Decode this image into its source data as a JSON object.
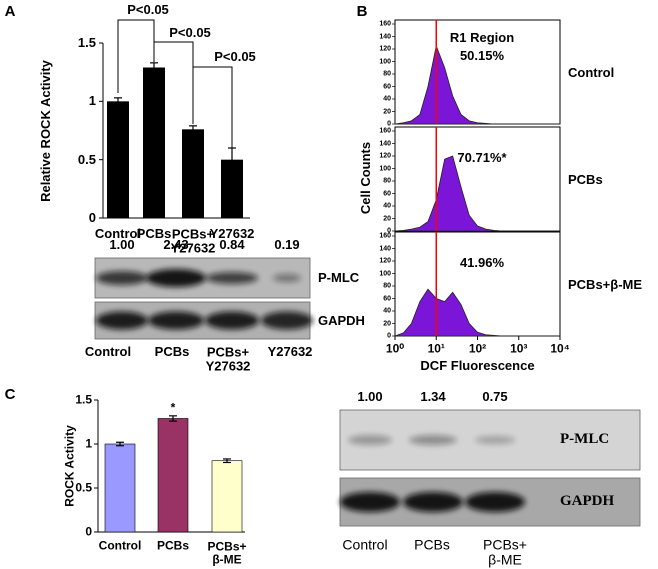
{
  "panel_labels": [
    "A",
    "B",
    "C"
  ],
  "chart_data": [
    {
      "type": "bar",
      "ylabel": "Relative ROCK Activity",
      "categories": [
        "Control",
        "PCBs",
        "PCBs+\nY27632",
        "Y27632"
      ],
      "values": [
        1.0,
        1.29,
        0.76,
        0.5
      ],
      "errors": [
        0.03,
        0.04,
        0.03,
        0.1
      ],
      "color": "#000000",
      "ylim": [
        0,
        1.5
      ],
      "yticks": [
        0,
        0.5,
        1,
        1.5
      ],
      "annotations": [
        "P<0.05",
        "P<0.05",
        "P<0.05"
      ]
    },
    {
      "type": "area",
      "ylabel": "Cell Counts",
      "xlabel": "DCF Fluorescence",
      "xscale": "log",
      "region_label": "R1 Region",
      "gate_x": 10,
      "gate_color": "#ff0000",
      "x": [
        1,
        1.6,
        2.5,
        4,
        6.3,
        10,
        16,
        25,
        40,
        63,
        100,
        160,
        250,
        400,
        10000
      ],
      "series": [
        {
          "name": "Control",
          "color": "#7b16d8",
          "label": "50.15%",
          "values": [
            0,
            2,
            5,
            15,
            60,
            125,
            90,
            45,
            15,
            5,
            2,
            1,
            0,
            0,
            0
          ]
        },
        {
          "name": "PCBs",
          "color": "#7b16d8",
          "label": "70.71%*",
          "values": [
            0,
            1,
            3,
            6,
            15,
            50,
            115,
            120,
            70,
            25,
            8,
            3,
            1,
            0,
            0
          ]
        },
        {
          "name": "PCBs+β-ME",
          "color": "#7b16d8",
          "label": "41.96%",
          "values": [
            0,
            5,
            20,
            55,
            75,
            60,
            55,
            70,
            50,
            20,
            6,
            2,
            1,
            0,
            0
          ]
        }
      ],
      "xlim": [
        1,
        10000
      ],
      "xticks": [
        {
          "value": 1,
          "label": "10⁰"
        },
        {
          "value": 10,
          "label": "10¹"
        },
        {
          "value": 100,
          "label": "10²"
        },
        {
          "value": 1000,
          "label": "10³"
        },
        {
          "value": 10000,
          "label": "10⁴"
        }
      ],
      "ylim": [
        0,
        160
      ],
      "yticks": [
        0,
        20,
        40,
        60,
        80,
        100,
        120,
        140,
        160
      ]
    },
    {
      "type": "bar",
      "ylabel": "ROCK Activity",
      "categories": [
        "Control",
        "PCBs",
        "PCBs+\nβ-ME"
      ],
      "values": [
        1.0,
        1.29,
        0.81
      ],
      "errors": [
        0.02,
        0.03,
        0.02
      ],
      "colors": [
        "#9999ff",
        "#993366",
        "#ffffcc"
      ],
      "ylim": [
        0,
        1.5
      ],
      "yticks": [
        0,
        0.5,
        1,
        1.5
      ],
      "annotations": [
        "*"
      ]
    }
  ],
  "blots": [
    {
      "quantities": [
        "1.00",
        "2.43",
        "0.84",
        "0.19"
      ],
      "bands": [
        "P-MLC",
        "GAPDH"
      ],
      "lanes": [
        "Control",
        "PCBs",
        "PCBs+\nY27632",
        "Y27632"
      ]
    },
    {
      "quantities": [
        "1.00",
        "1.34",
        "0.75"
      ],
      "bands": [
        "P-MLC",
        "GAPDH"
      ],
      "lanes": [
        "Control",
        "PCBs",
        "PCBs+\nβ-ME"
      ]
    }
  ]
}
